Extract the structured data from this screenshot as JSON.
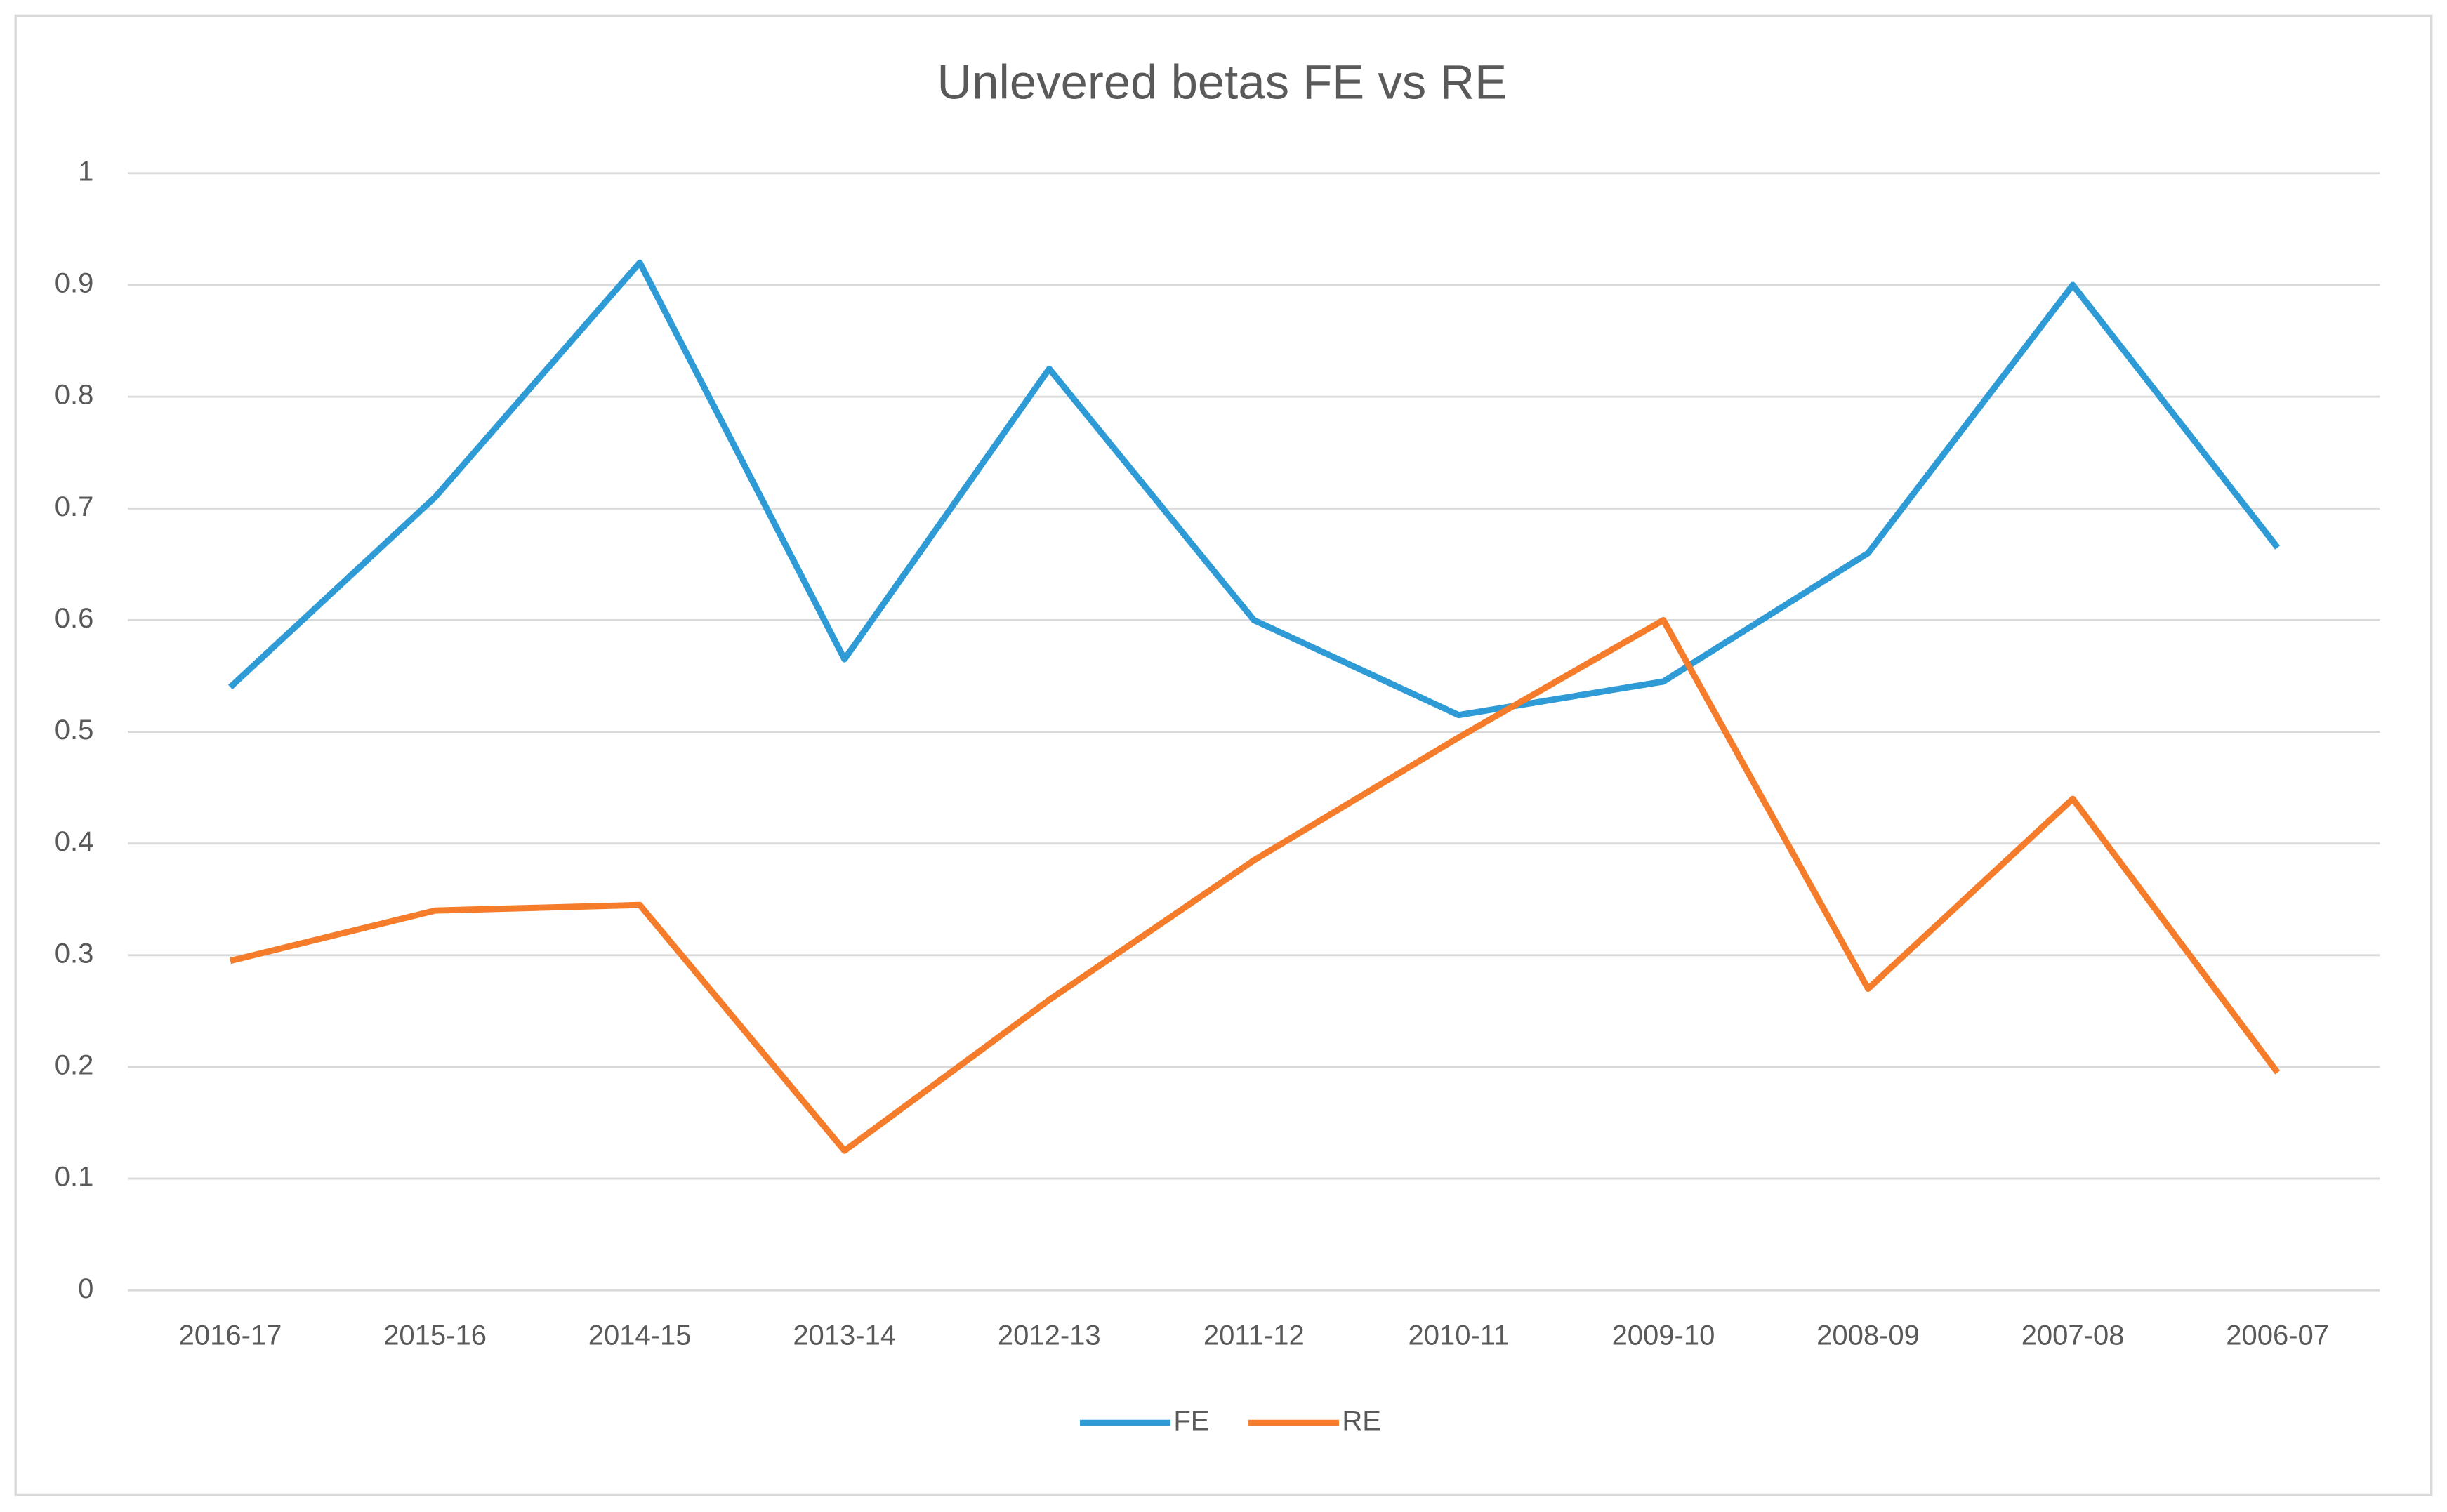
{
  "chart_data": {
    "type": "line",
    "title": "Unlevered betas FE vs RE",
    "categories": [
      "2016-17",
      "2015-16",
      "2014-15",
      "2013-14",
      "2012-13",
      "2011-12",
      "2010-11",
      "2009-10",
      "2008-09",
      "2007-08",
      "2006-07"
    ],
    "series": [
      {
        "name": "FE",
        "color": "#2e9bd6",
        "values": [
          0.54,
          0.71,
          0.92,
          0.565,
          0.825,
          0.6,
          0.515,
          0.545,
          0.66,
          0.9,
          0.665
        ]
      },
      {
        "name": "RE",
        "color": "#f47c2b",
        "values": [
          0.295,
          0.34,
          0.345,
          0.125,
          0.26,
          0.385,
          0.495,
          0.6,
          0.27,
          0.44,
          0.195
        ]
      }
    ],
    "ylim": [
      0,
      1
    ],
    "yticks": [
      0,
      0.1,
      0.2,
      0.3,
      0.4,
      0.5,
      0.6,
      0.7,
      0.8,
      0.9,
      1
    ],
    "grid": true,
    "legend": "bottom"
  }
}
